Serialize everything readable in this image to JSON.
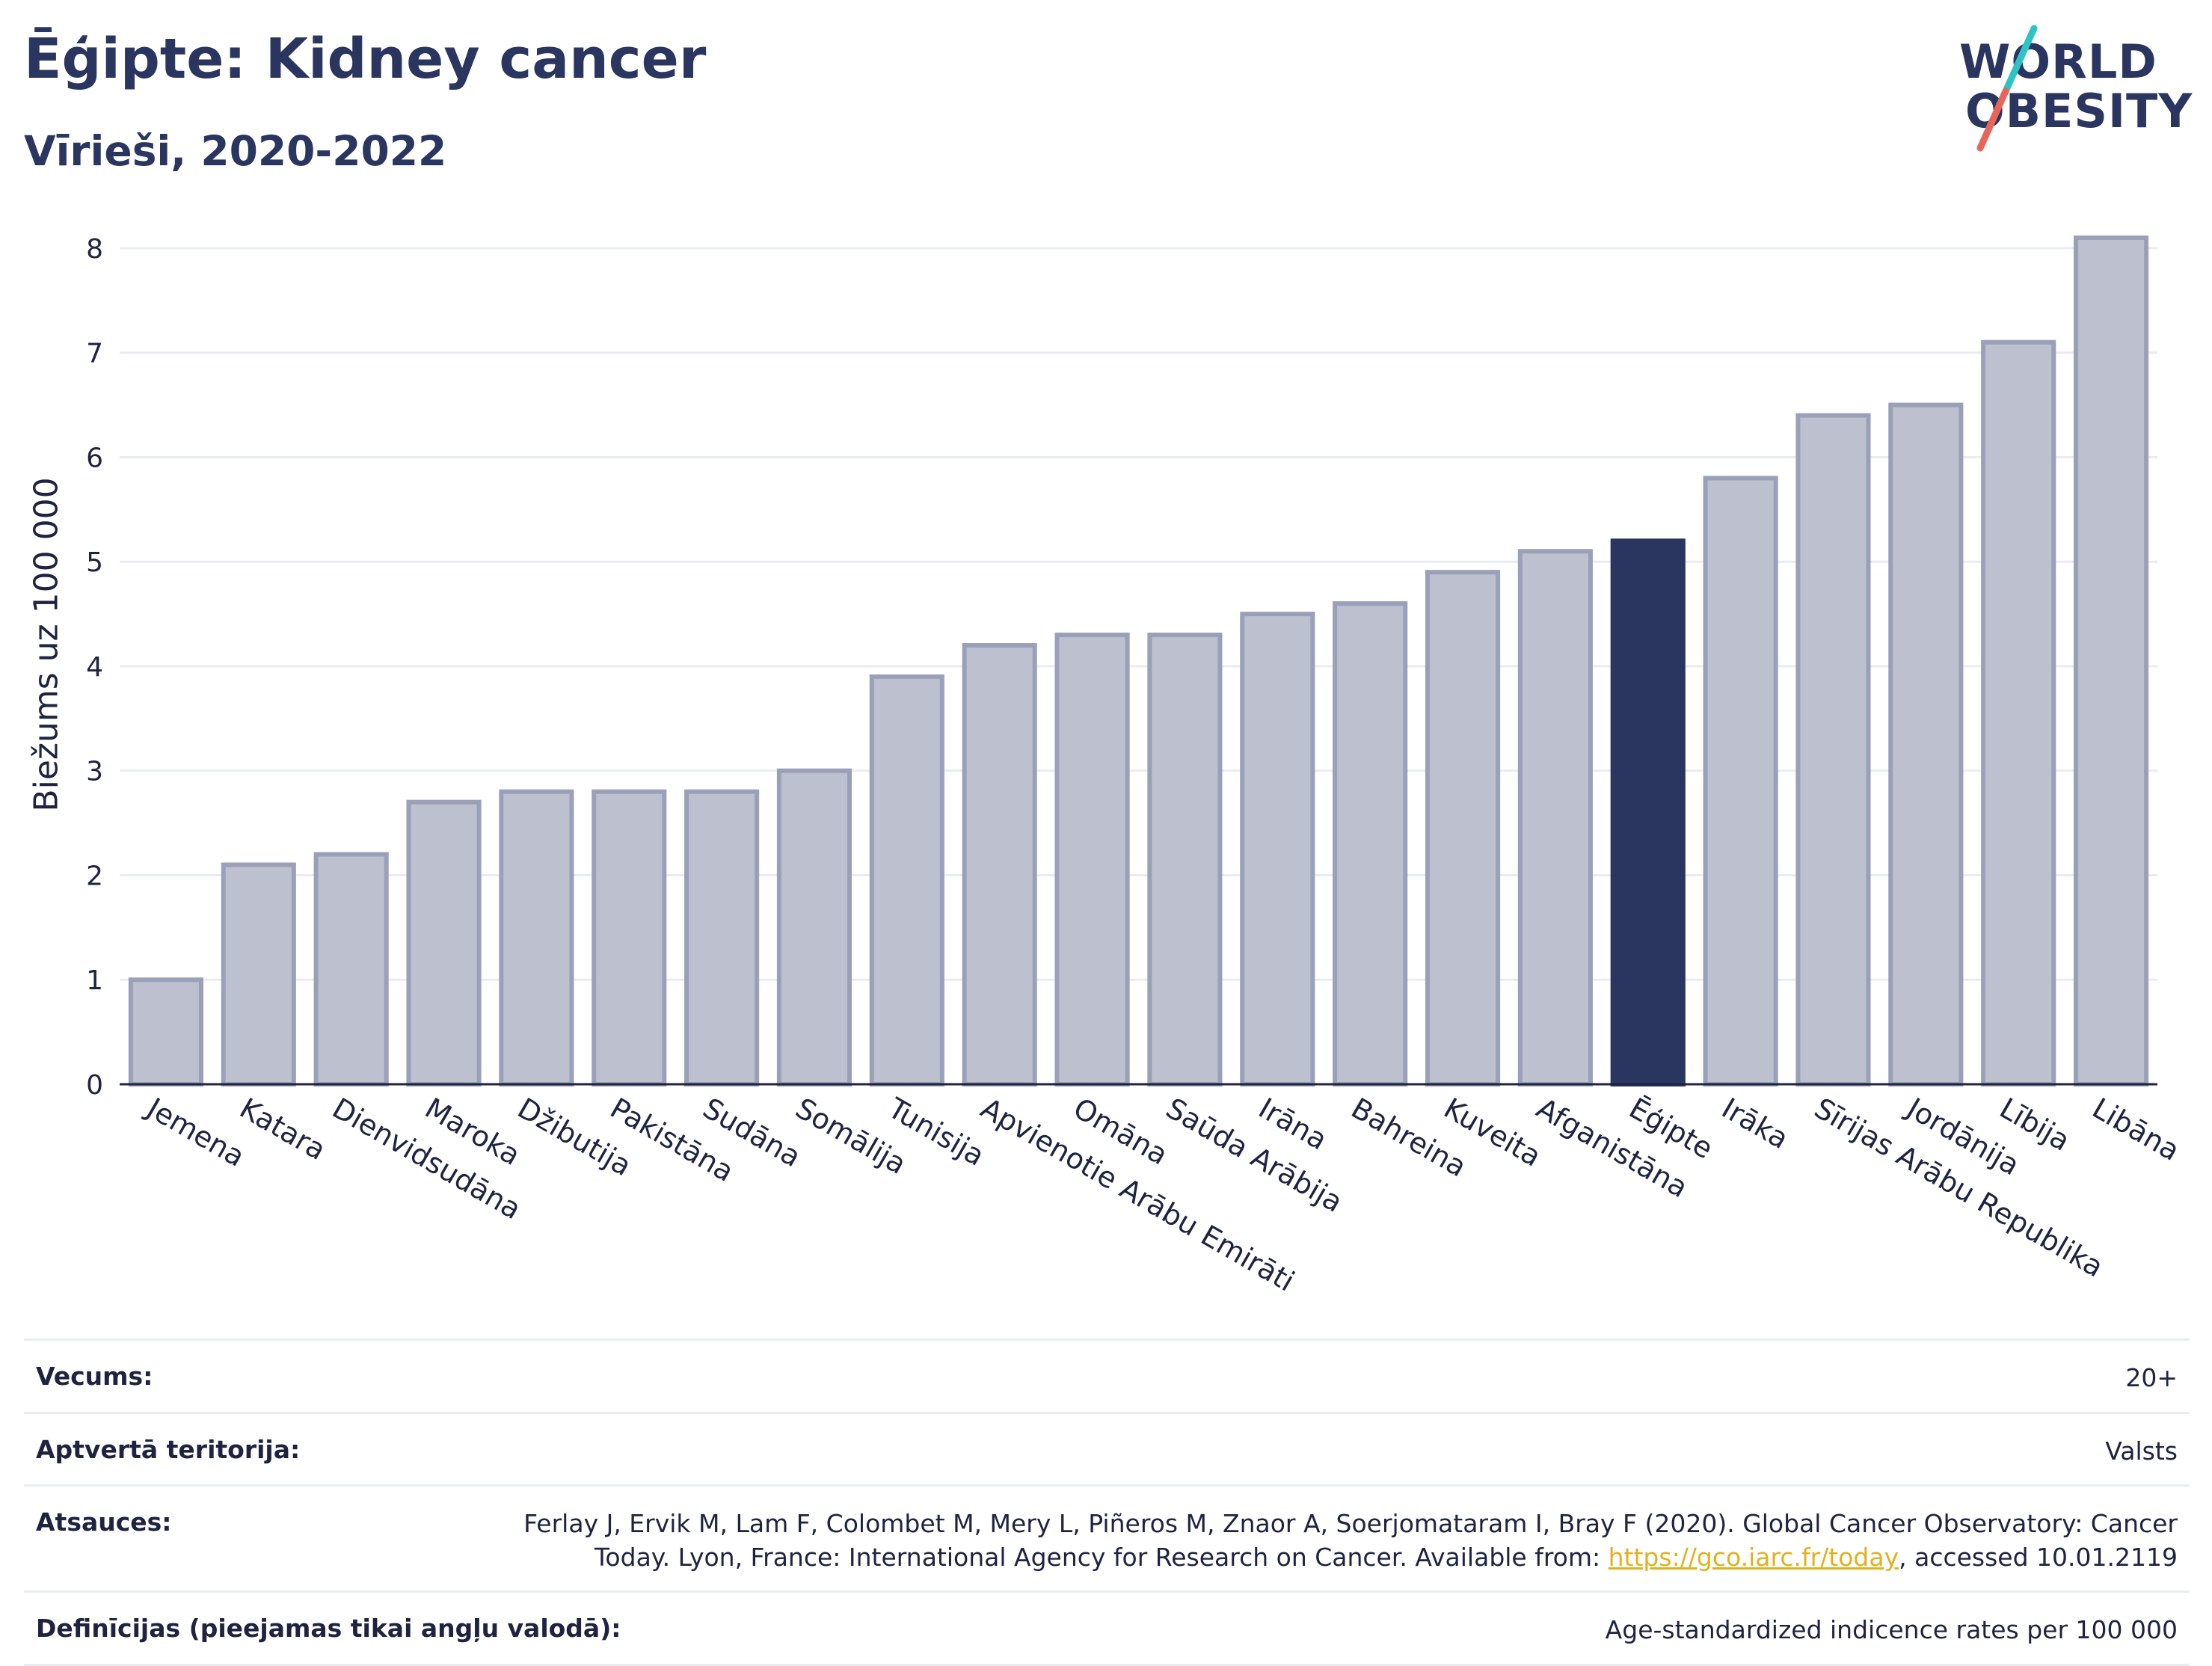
{
  "header": {
    "title": "Ēģipte: Kidney cancer",
    "subtitle": "Vīrieši, 2020-2022"
  },
  "logo": {
    "line1": "WORLD",
    "line2": "OBESITY",
    "accent_colors": [
      "#2ec4c6",
      "#e8655a"
    ]
  },
  "colors": {
    "bar": "#bcc0cf",
    "bar_edge": "#9aa0b8",
    "highlight": "#2a3560",
    "grid": "#e9ecf1"
  },
  "chart_data": {
    "type": "bar",
    "title": "",
    "xlabel": "",
    "ylabel": "Biežums uz 100 000",
    "ylim": [
      0,
      8.3
    ],
    "yticks": [
      0,
      1,
      2,
      3,
      4,
      5,
      6,
      7,
      8
    ],
    "grid": true,
    "highlight": "Ēģipte",
    "categories": [
      "Jemena",
      "Katara",
      "Dienvidsudāna",
      "Maroka",
      "Džibutija",
      "Pakistāna",
      "Sudāna",
      "Somālija",
      "Tunisija",
      "Apvienotie Arābu Emirāti",
      "Omāna",
      "Saūda Arābija",
      "Irāna",
      "Bahreina",
      "Kuveita",
      "Afganistāna",
      "Ēģipte",
      "Irāka",
      "Sīrijas Arābu Republika",
      "Jordānija",
      "Lībija",
      "Libāna"
    ],
    "values": [
      1.0,
      2.1,
      2.2,
      2.7,
      2.8,
      2.8,
      2.8,
      3.0,
      3.9,
      4.2,
      4.3,
      4.3,
      4.5,
      4.6,
      4.9,
      5.1,
      5.2,
      5.8,
      6.4,
      6.5,
      7.1,
      8.1
    ]
  },
  "info": {
    "rows": [
      {
        "label": "Vecums:",
        "value": "20+"
      },
      {
        "label": "Aptvertā teritorija:",
        "value": "Valsts"
      },
      {
        "label": "Atsauces:",
        "value_line1": "Ferlay J, Ervik M, Lam F, Colombet M, Mery L, Piñeros M, Znaor A, Soerjomataram I, Bray F (2020). Global Cancer Observatory: Cancer",
        "value_line2_pre": "Today. Lyon, France: International Agency for Research on Cancer. Available from: ",
        "link": "https://gco.iarc.fr/today",
        "value_line2_post": ", accessed 10.01.2119"
      },
      {
        "label": "Definīcijas (pieejamas tikai angļu valodā):",
        "value": "Age-standardized indicence rates per 100 000"
      }
    ]
  }
}
